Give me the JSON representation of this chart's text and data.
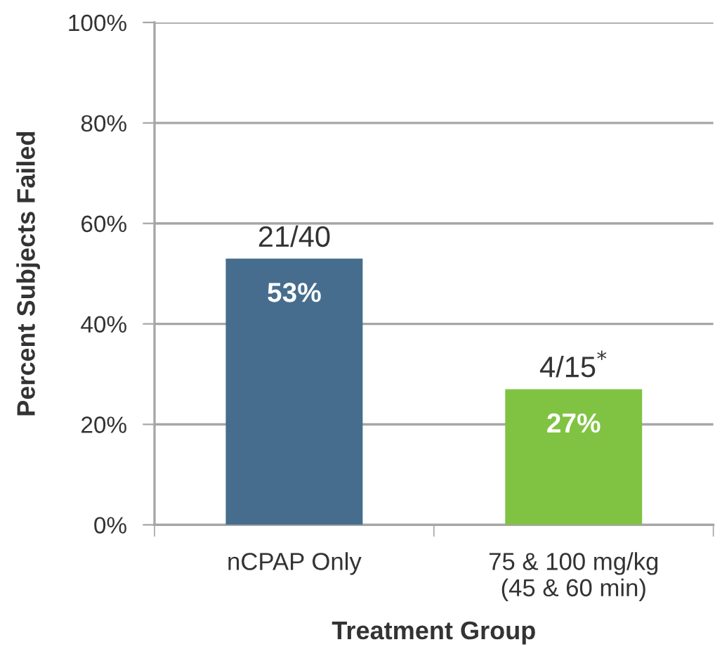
{
  "chart_data": {
    "type": "bar",
    "categories": [
      "nCPAP Only",
      "75 & 100 mg/kg\n(45 & 60 min)"
    ],
    "values": [
      53,
      27
    ],
    "colors": [
      "#466d8d",
      "#80c342"
    ],
    "value_labels": [
      "53%",
      "27%"
    ],
    "xlabel": "Treatment Group",
    "ylabel": "Percent Subjects Failed",
    "ylim": [
      0,
      100
    ],
    "yticks": [
      {
        "value": 0,
        "label": "0%"
      },
      {
        "value": 20,
        "label": "20%"
      },
      {
        "value": 40,
        "label": "40%"
      },
      {
        "value": 60,
        "label": "60%"
      },
      {
        "value": 80,
        "label": "80%"
      },
      {
        "value": 100,
        "label": "100%"
      }
    ],
    "grid": "y",
    "annotations": [
      {
        "text": "21/40",
        "x": "nCPAP Only",
        "y": 53
      },
      {
        "text": "4/15$^{*}$",
        "x": "75 & 100 mg/kg\n(45 & 60 min)",
        "y": 27
      }
    ]
  }
}
